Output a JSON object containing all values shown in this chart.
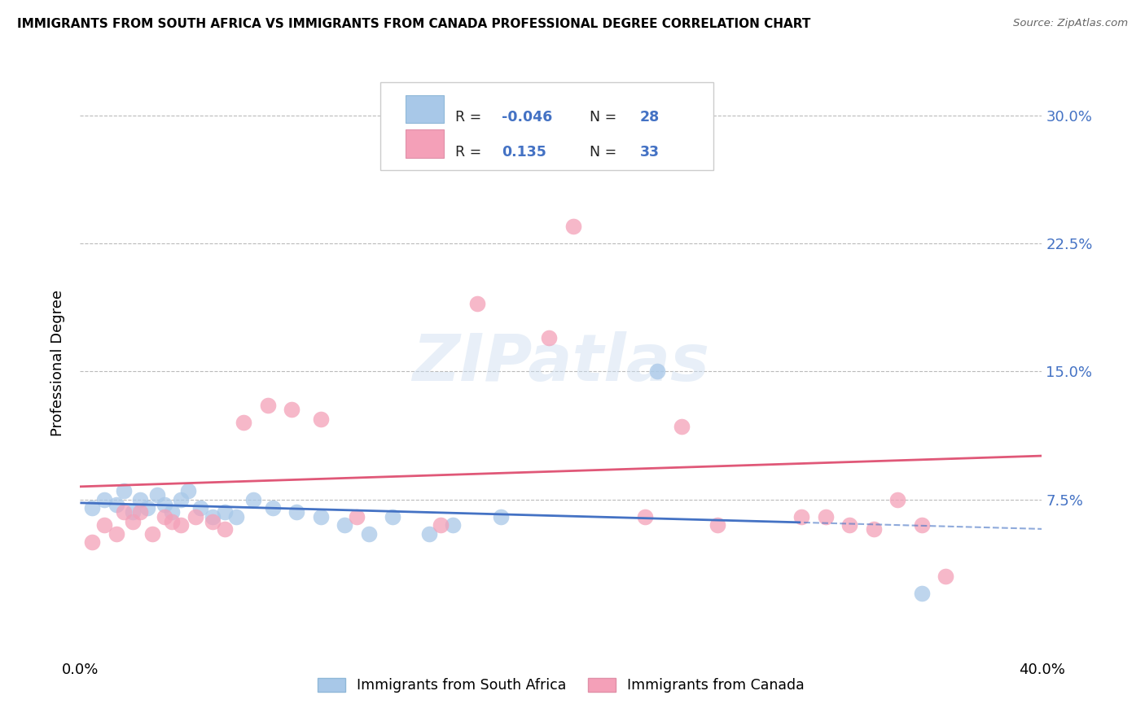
{
  "title": "IMMIGRANTS FROM SOUTH AFRICA VS IMMIGRANTS FROM CANADA PROFESSIONAL DEGREE CORRELATION CHART",
  "source": "Source: ZipAtlas.com",
  "ylabel": "Professional Degree",
  "ytick_labels": [
    "7.5%",
    "15.0%",
    "22.5%",
    "30.0%"
  ],
  "ytick_values": [
    0.075,
    0.15,
    0.225,
    0.3
  ],
  "xlim": [
    0.0,
    0.4
  ],
  "ylim": [
    -0.015,
    0.325
  ],
  "color_blue": "#a8c8e8",
  "color_pink": "#f4a0b8",
  "line_blue": "#4472c4",
  "line_pink": "#e05878",
  "blue_x": [
    0.005,
    0.01,
    0.015,
    0.018,
    0.022,
    0.025,
    0.028,
    0.032,
    0.035,
    0.038,
    0.042,
    0.045,
    0.05,
    0.055,
    0.06,
    0.065,
    0.072,
    0.08,
    0.09,
    0.1,
    0.11,
    0.12,
    0.13,
    0.145,
    0.155,
    0.175,
    0.24,
    0.35
  ],
  "blue_y": [
    0.07,
    0.075,
    0.072,
    0.08,
    0.068,
    0.075,
    0.07,
    0.078,
    0.072,
    0.068,
    0.075,
    0.08,
    0.07,
    0.065,
    0.068,
    0.065,
    0.075,
    0.07,
    0.068,
    0.065,
    0.06,
    0.055,
    0.065,
    0.055,
    0.06,
    0.065,
    0.15,
    0.02
  ],
  "pink_x": [
    0.005,
    0.01,
    0.015,
    0.018,
    0.022,
    0.025,
    0.03,
    0.035,
    0.038,
    0.042,
    0.048,
    0.055,
    0.06,
    0.068,
    0.078,
    0.088,
    0.1,
    0.115,
    0.15,
    0.165,
    0.195,
    0.205,
    0.225,
    0.235,
    0.25,
    0.265,
    0.3,
    0.31,
    0.32,
    0.33,
    0.34,
    0.35,
    0.36
  ],
  "pink_y": [
    0.05,
    0.06,
    0.055,
    0.068,
    0.062,
    0.068,
    0.055,
    0.065,
    0.062,
    0.06,
    0.065,
    0.062,
    0.058,
    0.12,
    0.13,
    0.128,
    0.122,
    0.065,
    0.06,
    0.19,
    0.17,
    0.235,
    0.28,
    0.065,
    0.118,
    0.06,
    0.065,
    0.065,
    0.06,
    0.058,
    0.075,
    0.06,
    0.03
  ]
}
